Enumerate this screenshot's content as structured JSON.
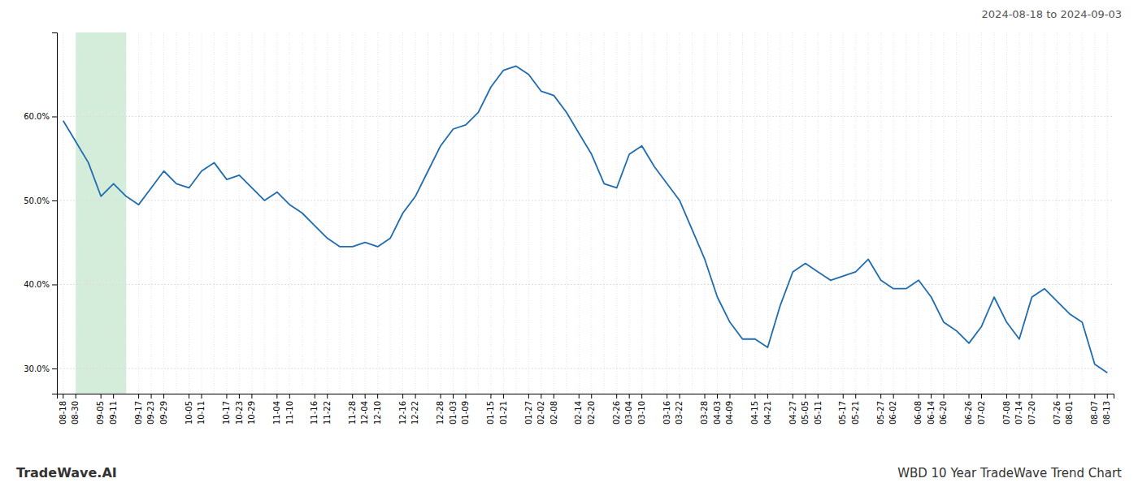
{
  "chart_data": {
    "type": "line",
    "title": "2024-08-18 to 2024-09-03",
    "annotations": [
      "TradeWave.AI",
      "WBD 10 Year TradeWave Trend Chart"
    ],
    "color": "#1f6cb0",
    "grid": true,
    "highlight": {
      "start": 1,
      "end": 5,
      "color": "#d4edda"
    },
    "ylim": [
      27,
      70
    ],
    "yticks": [
      {
        "value": 30,
        "label": "30.0%"
      },
      {
        "value": 40,
        "label": "40.0%"
      },
      {
        "value": 50,
        "label": "50.0%"
      },
      {
        "value": 60,
        "label": "60.0%"
      }
    ],
    "categories": [
      "08-18",
      "08-30",
      null,
      "09-05",
      "09-11",
      null,
      "09-17",
      "09-23",
      "09-29",
      null,
      "10-05",
      "10-11",
      null,
      "10-17",
      "10-23",
      "10-29",
      null,
      "11-04",
      "11-10",
      null,
      "11-16",
      "11-22",
      null,
      "11-28",
      "12-04",
      "12-10",
      null,
      "12-16",
      "12-22",
      null,
      "12-28",
      "01-03",
      "01-09",
      null,
      "01-15",
      "01-21",
      null,
      "01-27",
      "02-02",
      "02-08",
      null,
      "02-14",
      "02-20",
      null,
      "02-26",
      "03-04",
      "03-10",
      null,
      "03-16",
      "03-22",
      null,
      "03-28",
      "04-03",
      "04-09",
      null,
      "04-15",
      "04-21",
      null,
      "04-27",
      "05-05",
      "05-11",
      null,
      "05-17",
      "05-21",
      null,
      "05-27",
      "06-02",
      null,
      "06-08",
      "06-14",
      "06-20",
      null,
      "06-26",
      "07-02",
      null,
      "07-08",
      "07-14",
      "07-20",
      null,
      "07-26",
      "08-01",
      null,
      "08-07",
      "08-13"
    ],
    "values": [
      59.5,
      57.0,
      54.5,
      50.5,
      52.0,
      50.5,
      49.5,
      51.5,
      53.5,
      52.0,
      51.5,
      53.5,
      54.5,
      52.5,
      53.0,
      51.5,
      50.0,
      51.0,
      49.5,
      48.5,
      47.0,
      45.5,
      44.5,
      44.5,
      45.0,
      44.5,
      45.5,
      48.5,
      50.5,
      53.5,
      56.5,
      58.5,
      59.0,
      60.5,
      63.5,
      65.5,
      66.0,
      65.0,
      63.0,
      62.5,
      60.5,
      58.0,
      55.5,
      52.0,
      51.5,
      55.5,
      56.5,
      54.0,
      52.0,
      50.0,
      46.5,
      43.0,
      38.5,
      35.5,
      33.5,
      33.5,
      32.5,
      37.5,
      41.5,
      42.5,
      41.5,
      40.5,
      41.0,
      41.5,
      43.0,
      40.5,
      39.5,
      39.5,
      40.5,
      38.5,
      35.5,
      34.5,
      33.0,
      35.0,
      38.5,
      35.5,
      33.5,
      38.5,
      39.5,
      38.0,
      36.5,
      35.5,
      30.5,
      29.5
    ]
  }
}
